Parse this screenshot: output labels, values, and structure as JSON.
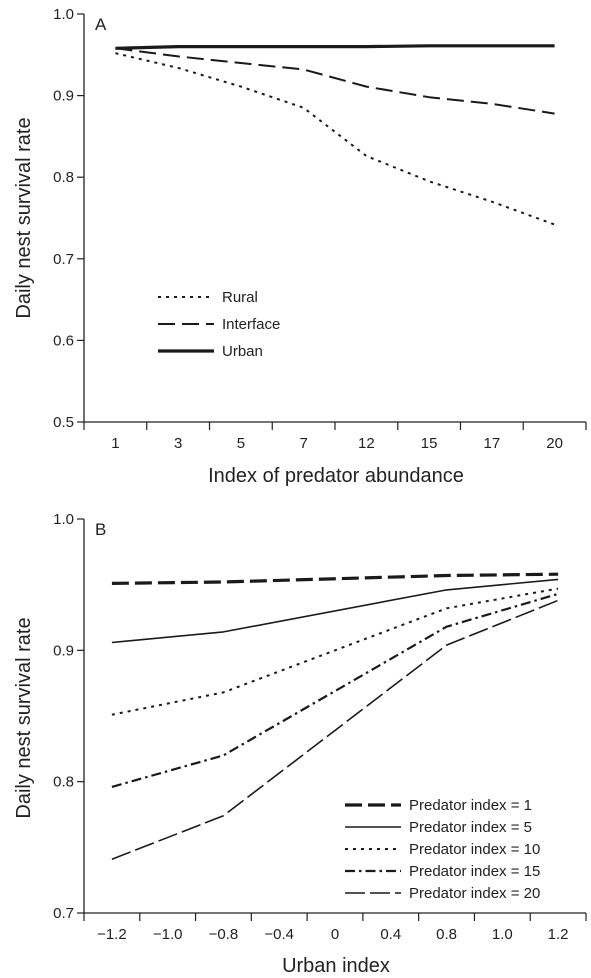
{
  "chart_data": [
    {
      "type": "line",
      "panel_label": "A",
      "xlabel": "Index of predator abundance",
      "ylabel": "Daily nest survival rate",
      "categories": [
        "1",
        "3",
        "5",
        "7",
        "12",
        "15",
        "17",
        "20"
      ],
      "ylim": [
        0.5,
        1.0
      ],
      "yticks": [
        "0.5",
        "0.6",
        "0.7",
        "0.8",
        "0.9",
        "1.0"
      ],
      "legend_position": "lower-left",
      "series": [
        {
          "name": "Rural",
          "style": "dotted",
          "values": [
            0.952,
            0.934,
            0.911,
            0.885,
            0.826,
            0.795,
            0.77,
            0.742
          ]
        },
        {
          "name": "Interface",
          "style": "dashed",
          "values": [
            0.958,
            0.948,
            0.94,
            0.932,
            0.911,
            0.898,
            0.89,
            0.878
          ]
        },
        {
          "name": "Urban",
          "style": "solid-thick",
          "values": [
            0.958,
            0.96,
            0.96,
            0.96,
            0.96,
            0.961,
            0.961,
            0.961
          ]
        }
      ]
    },
    {
      "type": "line",
      "panel_label": "B",
      "xlabel": "Urban index",
      "ylabel": "Daily nest survival rate",
      "categories": [
        "−1.2",
        "−1.0",
        "−0.8",
        "−0.4",
        "0",
        "0.4",
        "0.8",
        "1.0",
        "1.2"
      ],
      "ylim": [
        0.7,
        1.0
      ],
      "yticks": [
        "0.7",
        "0.8",
        "0.9",
        "1.0"
      ],
      "legend_position": "lower-right",
      "series": [
        {
          "name": "Predator index = 1",
          "style": "long-dash-thick",
          "x": [
            -1.2,
            -0.8,
            0.8,
            1.2
          ],
          "values": [
            0.951,
            0.952,
            0.957,
            0.958
          ]
        },
        {
          "name": "Predator index = 5",
          "style": "solid",
          "x": [
            -1.2,
            -0.8,
            0.8,
            1.2
          ],
          "values": [
            0.906,
            0.914,
            0.946,
            0.954
          ]
        },
        {
          "name": "Predator index = 10",
          "style": "dotted",
          "x": [
            -1.2,
            -0.8,
            0.8,
            1.2
          ],
          "values": [
            0.851,
            0.868,
            0.932,
            0.947
          ]
        },
        {
          "name": "Predator index = 15",
          "style": "dash-dot",
          "x": [
            -1.2,
            -0.8,
            0.8,
            1.2
          ],
          "values": [
            0.796,
            0.82,
            0.918,
            0.943
          ]
        },
        {
          "name": "Predator index = 20",
          "style": "long-dash",
          "x": [
            -1.2,
            -0.8,
            0.8,
            1.2
          ],
          "values": [
            0.741,
            0.774,
            0.904,
            0.938
          ]
        }
      ]
    }
  ]
}
